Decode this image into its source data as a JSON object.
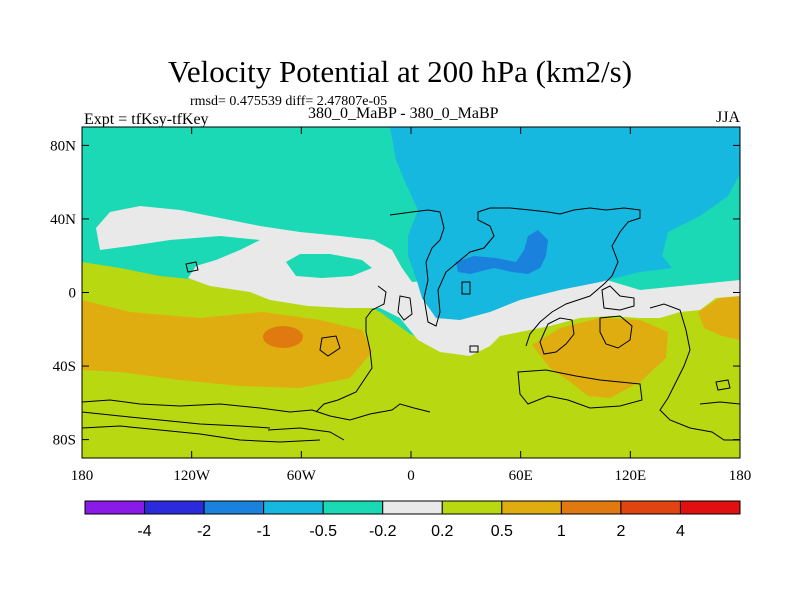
{
  "chart_data": {
    "type": "heatmap",
    "title": "Velocity Potential at 200 hPa (km2/s)",
    "stats": "rmsd= 0.475539 diff= 2.47807e-05",
    "left_label": "Expt = tfKsy-tfKey",
    "center_label": "380_0_MaBP - 380_0_MaBP",
    "right_label": "JJA",
    "xlim": [
      -180,
      180
    ],
    "ylim": [
      -90,
      90
    ],
    "x_ticks": [
      {
        "value": -180,
        "label": "180"
      },
      {
        "value": -120,
        "label": "120W"
      },
      {
        "value": -60,
        "label": "60W"
      },
      {
        "value": 0,
        "label": "0"
      },
      {
        "value": 60,
        "label": "60E"
      },
      {
        "value": 120,
        "label": "120E"
      },
      {
        "value": 180,
        "label": "180"
      }
    ],
    "y_ticks": [
      {
        "value": 80,
        "label": "80N"
      },
      {
        "value": 40,
        "label": "40N"
      },
      {
        "value": 0,
        "label": "0"
      },
      {
        "value": -40,
        "label": "40S"
      },
      {
        "value": -80,
        "label": "80S"
      }
    ],
    "colorbar": {
      "levels": [
        "-4",
        "-2",
        "-1",
        "-0.5",
        "-0.2",
        "0.2",
        "0.5",
        "1",
        "2",
        "4"
      ],
      "colors": [
        "#8a1ae8",
        "#2b2bdc",
        "#1a82dc",
        "#16b8e0",
        "#1ad9b4",
        "#e9e9e9",
        "#b8d812",
        "#e0ad10",
        "#e07a10",
        "#e04410",
        "#e01010"
      ]
    },
    "regions": [
      {
        "name": "positive-band-south",
        "value_range": "0.2 to 0.5",
        "color": "#b8d812"
      },
      {
        "name": "southern-pacific-maximum",
        "value_range": "0.5 to 1",
        "color": "#e0ad10"
      },
      {
        "name": "southern-pacific-core",
        "value_range": "1 to 2",
        "color": "#e07a10"
      },
      {
        "name": "indian-ocean-maximum",
        "value_range": "0.5 to 1",
        "color": "#e0ad10"
      },
      {
        "name": "northern-hemisphere-band",
        "value_range": "-0.5 to -0.2",
        "color": "#1ad9b4"
      },
      {
        "name": "tropical-neutral-band",
        "value_range": "-0.2 to 0.2",
        "color": "#e9e9e9"
      },
      {
        "name": "asian-minimum",
        "value_range": "-1 to -0.5",
        "color": "#16b8e0"
      },
      {
        "name": "asian-minimum-core",
        "value_range": "-2 to -1",
        "color": "#1a82dc"
      }
    ]
  }
}
